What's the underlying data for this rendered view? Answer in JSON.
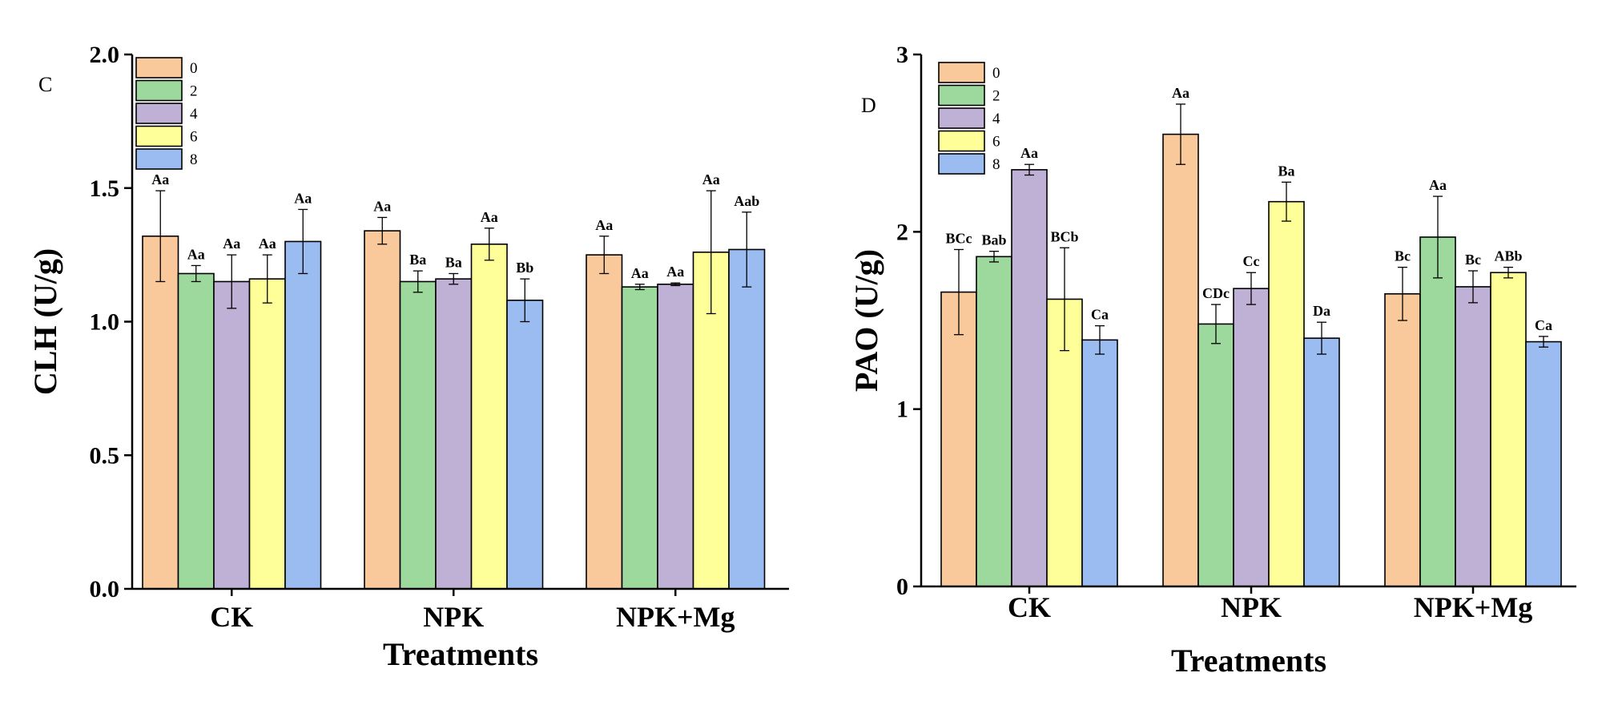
{
  "colors": {
    "0": "#f9c89b",
    "2": "#9dd89d",
    "4": "#bfb1d5",
    "6": "#ffff99",
    "8": "#9bbcf0"
  },
  "chart_data": [
    {
      "type": "bar",
      "panel_label": "C",
      "categories": [
        "CK",
        "NPK",
        "NPK+Mg"
      ],
      "xlabel": "Treatments",
      "ylabel": "CLH (U/g)",
      "ylim": [
        0,
        2.0
      ],
      "yticks": [
        "0.0",
        "0.5",
        "1.0",
        "1.5",
        "2.0"
      ],
      "legend": {
        "position": "top-left"
      },
      "series": [
        {
          "name": "0",
          "values": [
            1.32,
            1.34,
            1.25
          ],
          "errors": [
            0.17,
            0.05,
            0.07
          ],
          "labels": [
            "Aa",
            "Aa",
            "Aa"
          ]
        },
        {
          "name": "2",
          "values": [
            1.18,
            1.15,
            1.13
          ],
          "errors": [
            0.03,
            0.04,
            0.01
          ],
          "labels": [
            "Aa",
            "Ba",
            "Aa"
          ]
        },
        {
          "name": "4",
          "values": [
            1.15,
            1.16,
            1.14
          ],
          "errors": [
            0.1,
            0.02,
            0.005
          ],
          "labels": [
            "Aa",
            "Ba",
            "Aa"
          ]
        },
        {
          "name": "6",
          "values": [
            1.16,
            1.29,
            1.26
          ],
          "errors": [
            0.09,
            0.06,
            0.23
          ],
          "labels": [
            "Aa",
            "Aa",
            "Aa"
          ]
        },
        {
          "name": "8",
          "values": [
            1.3,
            1.08,
            1.27
          ],
          "errors": [
            0.12,
            0.08,
            0.14
          ],
          "labels": [
            "Aa",
            "Bb",
            "Aab"
          ]
        }
      ]
    },
    {
      "type": "bar",
      "panel_label": "D",
      "categories": [
        "CK",
        "NPK",
        "NPK+Mg"
      ],
      "xlabel": "Treatments",
      "ylabel": "PAO (U/g)",
      "ylim": [
        0,
        3
      ],
      "yticks": [
        "0",
        "1",
        "2",
        "3"
      ],
      "legend": {
        "position": "top-left"
      },
      "series": [
        {
          "name": "0",
          "values": [
            1.66,
            2.55,
            1.65
          ],
          "errors": [
            0.24,
            0.17,
            0.15
          ],
          "labels": [
            "BCc",
            "Aa",
            "Bc"
          ]
        },
        {
          "name": "2",
          "values": [
            1.86,
            1.48,
            1.97
          ],
          "errors": [
            0.03,
            0.11,
            0.23
          ],
          "labels": [
            "Bab",
            "CDc",
            "Aa"
          ]
        },
        {
          "name": "4",
          "values": [
            2.35,
            1.68,
            1.69
          ],
          "errors": [
            0.03,
            0.09,
            0.09
          ],
          "labels": [
            "Aa",
            "Cc",
            "Bc"
          ]
        },
        {
          "name": "6",
          "values": [
            1.62,
            2.17,
            1.77
          ],
          "errors": [
            0.29,
            0.11,
            0.03
          ],
          "labels": [
            "BCb",
            "Ba",
            "ABb"
          ]
        },
        {
          "name": "8",
          "values": [
            1.39,
            1.4,
            1.38
          ],
          "errors": [
            0.08,
            0.09,
            0.03
          ],
          "labels": [
            "Ca",
            "Da",
            "Ca"
          ]
        }
      ]
    }
  ]
}
